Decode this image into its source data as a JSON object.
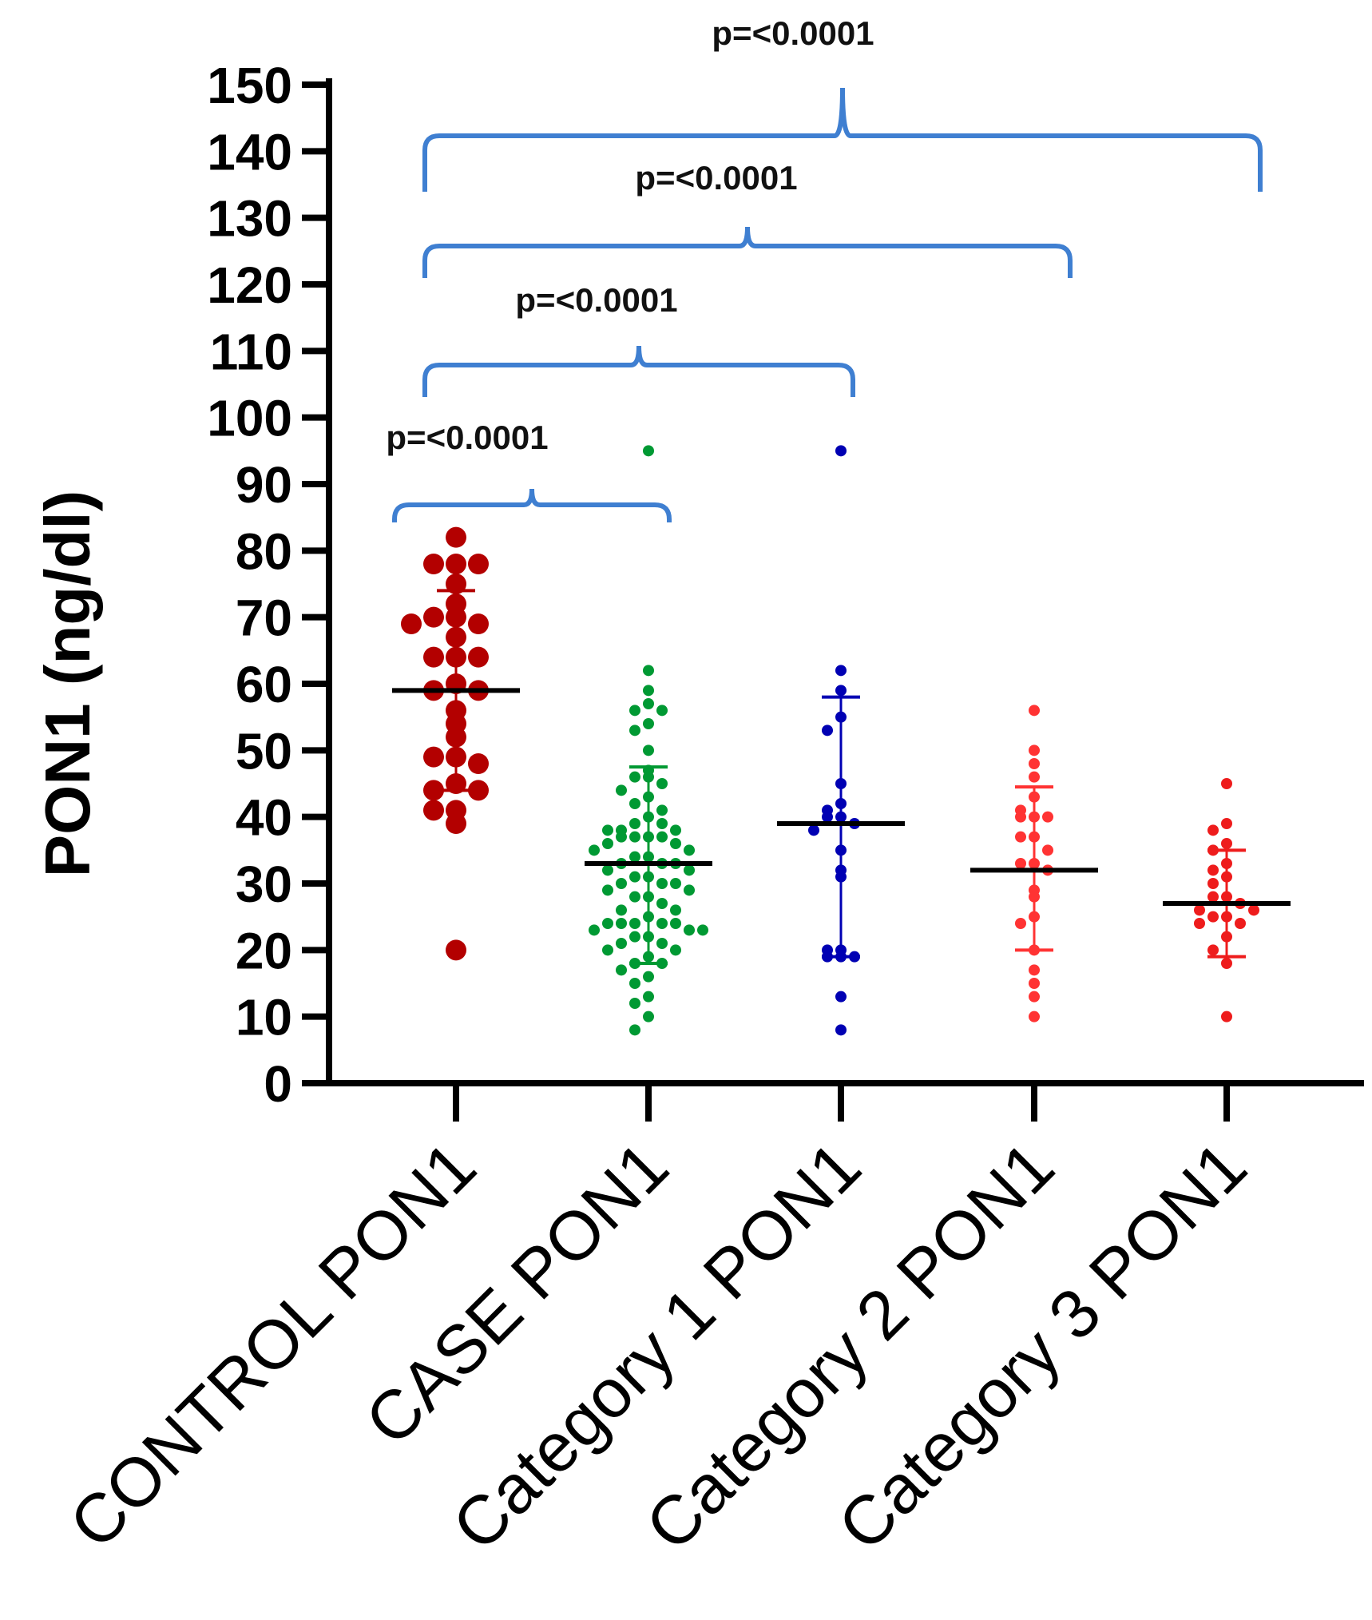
{
  "chart_data": {
    "type": "scatter",
    "ylabel": "PON1 (ng/dl)",
    "ylim": [
      0,
      150
    ],
    "yticks": [
      "0",
      "10",
      "20",
      "30",
      "40",
      "50",
      "60",
      "70",
      "80",
      "90",
      "100",
      "110",
      "120",
      "130",
      "140",
      "150"
    ],
    "categories": [
      "CONTROL PON1",
      "CASE PON1",
      "Category 1 PON1",
      "Category 2 PON1",
      "Category 3 PON1"
    ],
    "bracket_color": "#3f7fd1",
    "series": [
      {
        "category": "CONTROL PON1",
        "color": "#b30000",
        "mean": 59,
        "sd_low": 44,
        "sd_high": 74,
        "values": [
          82,
          78,
          78,
          78,
          75,
          72,
          70,
          70,
          69,
          69,
          67,
          64,
          64,
          64,
          60,
          59,
          59,
          56,
          54,
          52,
          49,
          49,
          48,
          45,
          44,
          44,
          41,
          41,
          39,
          20
        ]
      },
      {
        "category": "CASE PON1",
        "color": "#009933",
        "mean": 33,
        "sd_low": 18,
        "sd_high": 47.5,
        "values": [
          95,
          62,
          59,
          57,
          56,
          56,
          54,
          53,
          50,
          47,
          46,
          46,
          45,
          44,
          43,
          42,
          41,
          40,
          39,
          39,
          38,
          38,
          38,
          37,
          37,
          37,
          37,
          36,
          36,
          35,
          35,
          34,
          34,
          33,
          33,
          33,
          32,
          32,
          31,
          31,
          30,
          30,
          30,
          29,
          29,
          28,
          28,
          27,
          26,
          26,
          25,
          24,
          24,
          24,
          24,
          24,
          23,
          23,
          23,
          22,
          22,
          21,
          21,
          20,
          20,
          19,
          18,
          18,
          17,
          16,
          15,
          13,
          12,
          10,
          8
        ]
      },
      {
        "category": "Category 1 PON1",
        "color": "#0000b3",
        "mean": 39,
        "sd_low": 19,
        "sd_high": 58,
        "values": [
          95,
          62,
          59,
          55,
          53,
          45,
          42,
          41,
          40,
          40,
          39,
          38,
          35,
          32,
          31,
          20,
          20,
          19,
          19,
          19,
          13,
          8
        ]
      },
      {
        "category": "Category 2 PON1",
        "color": "#ff3333",
        "mean": 32,
        "sd_low": 20,
        "sd_high": 44.5,
        "values": [
          56,
          50,
          48,
          46,
          43,
          41,
          40,
          40,
          40,
          37,
          37,
          35,
          33,
          33,
          32,
          29,
          28,
          25,
          24,
          20,
          17,
          15,
          13,
          10
        ]
      },
      {
        "category": "Category 3 PON1",
        "color": "#ee1c1c",
        "mean": 27,
        "sd_low": 19,
        "sd_high": 35,
        "values": [
          45,
          39,
          38,
          36,
          35,
          33,
          32,
          31,
          30,
          28,
          28,
          27,
          26,
          26,
          25,
          25,
          24,
          24,
          22,
          20,
          18,
          10
        ]
      }
    ],
    "annotations": [
      {
        "text": "p=<0.0001",
        "from": "CONTROL PON1",
        "to": "CASE PON1"
      },
      {
        "text": "p=<0.0001",
        "from": "CONTROL PON1",
        "to": "Category 1 PON1"
      },
      {
        "text": "p=<0.0001",
        "from": "CONTROL PON1",
        "to": "Category 2 PON1"
      },
      {
        "text": "p=<0.0001",
        "from": "CONTROL PON1",
        "to": "Category 3 PON1"
      }
    ]
  }
}
